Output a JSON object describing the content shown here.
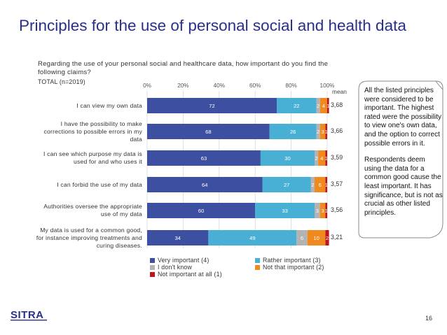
{
  "slide": {
    "title": "Principles for the use of personal social and health data",
    "question": "Regarding the use of your personal social and healthcare data, how important do you find the following claims?",
    "total": "TOTAL (n=2019)",
    "mean_header": "mean",
    "page_number": "16",
    "logo_text": "SITRA",
    "callout": [
      "All the listed principles were considered to be important. The highest rated were the possibility to view one's own data, and the option to correct possible errors in it.",
      "Respondents deem using the data for a common good cause the least important. It has significance, but is not as crucial as other listed principles."
    ]
  },
  "chart_data": {
    "type": "bar",
    "orientation": "horizontal",
    "stacked": true,
    "title": "",
    "xlabel": "",
    "ylabel": "",
    "xlim": [
      0,
      100
    ],
    "x_ticks": [
      "0%",
      "20%",
      "40%",
      "60%",
      "80%",
      "100%"
    ],
    "x_tick_position": "top",
    "grid": true,
    "legend_position": "bottom",
    "categories": [
      "I can view my own data",
      "I have the possibility to make corrections to possible errors in my data",
      "I can see which purpose my data is used for and who uses it",
      "I can forbid the use of my data",
      "Authorities oversee the appropriate use of my data",
      "My data is used for a common good, for instance improving treatments and curing diseases."
    ],
    "series": [
      {
        "name": "Very important (4)",
        "color": "#3d4fa1",
        "values": [
          72,
          68,
          63,
          64,
          60,
          34
        ]
      },
      {
        "name": "Rather important (3)",
        "color": "#47b0d4",
        "values": [
          22,
          26,
          30,
          27,
          33,
          49
        ]
      },
      {
        "name": "I don't know",
        "color": "#b3b3b3",
        "values": [
          2,
          2,
          2,
          2,
          3,
          6
        ]
      },
      {
        "name": "Not that important (2)",
        "color": "#f0891e",
        "values": [
          4,
          3,
          4,
          6,
          3,
          10
        ]
      },
      {
        "name": "Not important at all (1)",
        "color": "#c0141c",
        "values": [
          1,
          1,
          1,
          1,
          1,
          2
        ]
      }
    ],
    "data_labels": [
      [
        "72",
        "22",
        "2",
        "4",
        "1"
      ],
      [
        "68",
        "26",
        "2",
        "3",
        "1"
      ],
      [
        "63",
        "30",
        "2",
        "4",
        "1"
      ],
      [
        "64",
        "27",
        "2",
        "6",
        "1"
      ],
      [
        "60",
        "33",
        "3",
        "3",
        "1"
      ],
      [
        "34",
        "49",
        "6",
        "10",
        "2"
      ]
    ],
    "means": [
      "3,68",
      "3,66",
      "3,59",
      "3,57",
      "3,56",
      "3,21"
    ]
  }
}
